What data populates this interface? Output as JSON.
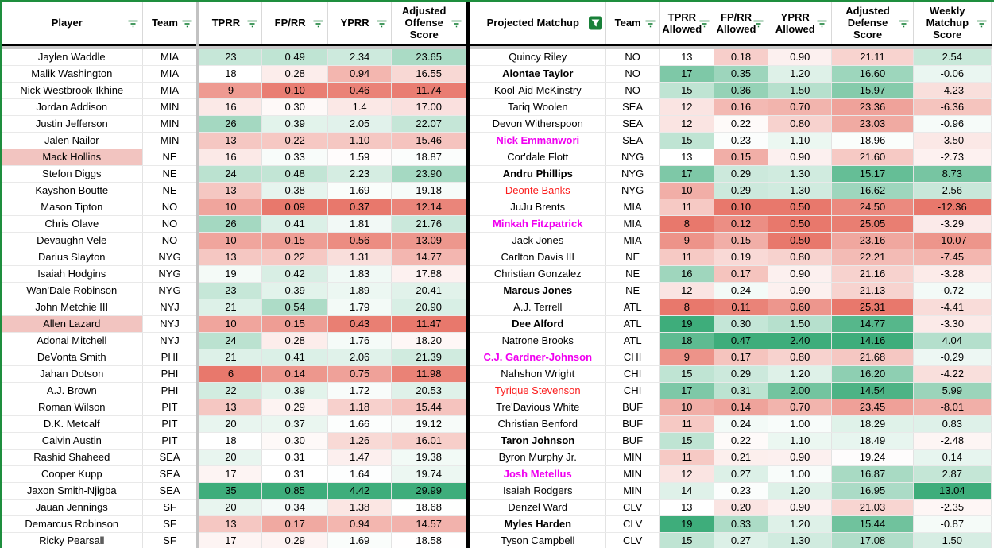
{
  "left_table": {
    "columns": [
      {
        "label": "Player",
        "filter": "outline"
      },
      {
        "label": "Team",
        "filter": "outline"
      },
      {
        "label": "TPRR",
        "filter": "outline"
      },
      {
        "label": "FP/RR",
        "filter": "outline"
      },
      {
        "label": "YPRR",
        "filter": "outline"
      },
      {
        "label": "Adjusted Offense Score",
        "filter": "outline"
      }
    ],
    "rows": [
      {
        "player": "Jaylen Waddle",
        "team": "MIA",
        "tprr": "23",
        "fp_rr": "0.49",
        "yprr": "2.34",
        "adj_off": "23.65",
        "highlighted": false
      },
      {
        "player": "Malik Washington",
        "team": "MIA",
        "tprr": "18",
        "fp_rr": "0.28",
        "yprr": "0.94",
        "adj_off": "16.55",
        "highlighted": false
      },
      {
        "player": "Nick Westbrook-Ikhine",
        "team": "MIA",
        "tprr": "9",
        "fp_rr": "0.10",
        "yprr": "0.46",
        "adj_off": "11.74",
        "highlighted": false
      },
      {
        "player": "Jordan Addison",
        "team": "MIN",
        "tprr": "16",
        "fp_rr": "0.30",
        "yprr": "1.4",
        "adj_off": "17.00",
        "highlighted": false
      },
      {
        "player": "Justin Jefferson",
        "team": "MIN",
        "tprr": "26",
        "fp_rr": "0.39",
        "yprr": "2.05",
        "adj_off": "22.07",
        "highlighted": false
      },
      {
        "player": "Jalen Nailor",
        "team": "MIN",
        "tprr": "13",
        "fp_rr": "0.22",
        "yprr": "1.10",
        "adj_off": "15.46",
        "highlighted": false
      },
      {
        "player": "Mack Hollins",
        "team": "NE",
        "tprr": "16",
        "fp_rr": "0.33",
        "yprr": "1.59",
        "adj_off": "18.87",
        "highlighted": true
      },
      {
        "player": "Stefon Diggs",
        "team": "NE",
        "tprr": "24",
        "fp_rr": "0.48",
        "yprr": "2.23",
        "adj_off": "23.90",
        "highlighted": false
      },
      {
        "player": "Kayshon Boutte",
        "team": "NE",
        "tprr": "13",
        "fp_rr": "0.38",
        "yprr": "1.69",
        "adj_off": "19.18",
        "highlighted": false
      },
      {
        "player": "Mason Tipton",
        "team": "NO",
        "tprr": "10",
        "fp_rr": "0.09",
        "yprr": "0.37",
        "adj_off": "12.14",
        "highlighted": false
      },
      {
        "player": "Chris Olave",
        "team": "NO",
        "tprr": "26",
        "fp_rr": "0.41",
        "yprr": "1.81",
        "adj_off": "21.76",
        "highlighted": false
      },
      {
        "player": "Devaughn Vele",
        "team": "NO",
        "tprr": "10",
        "fp_rr": "0.15",
        "yprr": "0.56",
        "adj_off": "13.09",
        "highlighted": false
      },
      {
        "player": "Darius Slayton",
        "team": "NYG",
        "tprr": "13",
        "fp_rr": "0.22",
        "yprr": "1.31",
        "adj_off": "14.77",
        "highlighted": false
      },
      {
        "player": "Isaiah Hodgins",
        "team": "NYG",
        "tprr": "19",
        "fp_rr": "0.42",
        "yprr": "1.83",
        "adj_off": "17.88",
        "highlighted": false
      },
      {
        "player": "Wan'Dale Robinson",
        "team": "NYG",
        "tprr": "23",
        "fp_rr": "0.39",
        "yprr": "1.89",
        "adj_off": "20.41",
        "highlighted": false
      },
      {
        "player": "John Metchie III",
        "team": "NYJ",
        "tprr": "21",
        "fp_rr": "0.54",
        "yprr": "1.79",
        "adj_off": "20.90",
        "highlighted": false
      },
      {
        "player": "Allen Lazard",
        "team": "NYJ",
        "tprr": "10",
        "fp_rr": "0.15",
        "yprr": "0.43",
        "adj_off": "11.47",
        "highlighted": true
      },
      {
        "player": "Adonai Mitchell",
        "team": "NYJ",
        "tprr": "24",
        "fp_rr": "0.28",
        "yprr": "1.76",
        "adj_off": "18.20",
        "highlighted": false
      },
      {
        "player": "DeVonta Smith",
        "team": "PHI",
        "tprr": "21",
        "fp_rr": "0.41",
        "yprr": "2.06",
        "adj_off": "21.39",
        "highlighted": false
      },
      {
        "player": "Jahan Dotson",
        "team": "PHI",
        "tprr": "6",
        "fp_rr": "0.14",
        "yprr": "0.75",
        "adj_off": "11.98",
        "highlighted": false
      },
      {
        "player": "A.J. Brown",
        "team": "PHI",
        "tprr": "22",
        "fp_rr": "0.39",
        "yprr": "1.72",
        "adj_off": "20.53",
        "highlighted": false
      },
      {
        "player": "Roman Wilson",
        "team": "PIT",
        "tprr": "13",
        "fp_rr": "0.29",
        "yprr": "1.18",
        "adj_off": "15.44",
        "highlighted": false
      },
      {
        "player": "D.K. Metcalf",
        "team": "PIT",
        "tprr": "20",
        "fp_rr": "0.37",
        "yprr": "1.66",
        "adj_off": "19.12",
        "highlighted": false
      },
      {
        "player": "Calvin Austin",
        "team": "PIT",
        "tprr": "18",
        "fp_rr": "0.30",
        "yprr": "1.26",
        "adj_off": "16.01",
        "highlighted": false
      },
      {
        "player": "Rashid Shaheed",
        "team": "SEA",
        "tprr": "20",
        "fp_rr": "0.31",
        "yprr": "1.47",
        "adj_off": "19.38",
        "highlighted": false
      },
      {
        "player": "Cooper Kupp",
        "team": "SEA",
        "tprr": "17",
        "fp_rr": "0.31",
        "yprr": "1.64",
        "adj_off": "19.74",
        "highlighted": false
      },
      {
        "player": "Jaxon Smith-Njigba",
        "team": "SEA",
        "tprr": "35",
        "fp_rr": "0.85",
        "yprr": "4.42",
        "adj_off": "29.99",
        "highlighted": false
      },
      {
        "player": "Jauan Jennings",
        "team": "SF",
        "tprr": "20",
        "fp_rr": "0.34",
        "yprr": "1.38",
        "adj_off": "18.68",
        "highlighted": false
      },
      {
        "player": "Demarcus Robinson",
        "team": "SF",
        "tprr": "13",
        "fp_rr": "0.17",
        "yprr": "0.94",
        "adj_off": "14.57",
        "highlighted": false
      },
      {
        "player": "Ricky Pearsall",
        "team": "SF",
        "tprr": "17",
        "fp_rr": "0.29",
        "yprr": "1.69",
        "adj_off": "18.58",
        "highlighted": false
      }
    ]
  },
  "right_table": {
    "columns": [
      {
        "label": "Projected Matchup",
        "filter": "active"
      },
      {
        "label": "Team",
        "filter": "outline"
      },
      {
        "label": "TPRR Allowed",
        "filter": "outline"
      },
      {
        "label": "FP/RR Allowed",
        "filter": "outline"
      },
      {
        "label": "YPRR Allowed",
        "filter": "outline"
      },
      {
        "label": "Adjusted Defense Score",
        "filter": "outline"
      },
      {
        "label": "Weekly Matchup Score",
        "filter": "outline"
      }
    ],
    "rows": [
      {
        "name": "Quincy Riley",
        "name_style": "normal",
        "team": "NO",
        "tprr_allowed": "13",
        "fp_rr_allowed": "0.18",
        "yprr_allowed": "0.90",
        "adj_def": "21.11",
        "weekly": "2.54"
      },
      {
        "name": "Alontae Taylor",
        "name_style": "bold",
        "team": "NO",
        "tprr_allowed": "17",
        "fp_rr_allowed": "0.35",
        "yprr_allowed": "1.20",
        "adj_def": "16.60",
        "weekly": "-0.06"
      },
      {
        "name": "Kool-Aid McKinstry",
        "name_style": "normal",
        "team": "NO",
        "tprr_allowed": "15",
        "fp_rr_allowed": "0.36",
        "yprr_allowed": "1.50",
        "adj_def": "15.97",
        "weekly": "-4.23"
      },
      {
        "name": "Tariq Woolen",
        "name_style": "normal",
        "team": "SEA",
        "tprr_allowed": "12",
        "fp_rr_allowed": "0.16",
        "yprr_allowed": "0.70",
        "adj_def": "23.36",
        "weekly": "-6.36"
      },
      {
        "name": "Devon Witherspoon",
        "name_style": "normal",
        "team": "SEA",
        "tprr_allowed": "12",
        "fp_rr_allowed": "0.22",
        "yprr_allowed": "0.80",
        "adj_def": "23.03",
        "weekly": "-0.96"
      },
      {
        "name": "Nick Emmanwori",
        "name_style": "magenta",
        "team": "SEA",
        "tprr_allowed": "15",
        "fp_rr_allowed": "0.23",
        "yprr_allowed": "1.10",
        "adj_def": "18.96",
        "weekly": "-3.50"
      },
      {
        "name": "Cor'dale Flott",
        "name_style": "normal",
        "team": "NYG",
        "tprr_allowed": "13",
        "fp_rr_allowed": "0.15",
        "yprr_allowed": "0.90",
        "adj_def": "21.60",
        "weekly": "-2.73"
      },
      {
        "name": "Andru Phillips",
        "name_style": "bold",
        "team": "NYG",
        "tprr_allowed": "17",
        "fp_rr_allowed": "0.29",
        "yprr_allowed": "1.30",
        "adj_def": "15.17",
        "weekly": "8.73"
      },
      {
        "name": "Deonte Banks",
        "name_style": "red",
        "team": "NYG",
        "tprr_allowed": "10",
        "fp_rr_allowed": "0.29",
        "yprr_allowed": "1.30",
        "adj_def": "16.62",
        "weekly": "2.56"
      },
      {
        "name": "JuJu Brents",
        "name_style": "normal",
        "team": "MIA",
        "tprr_allowed": "11",
        "fp_rr_allowed": "0.10",
        "yprr_allowed": "0.50",
        "adj_def": "24.50",
        "weekly": "-12.36"
      },
      {
        "name": "Minkah Fitzpatrick",
        "name_style": "magenta",
        "team": "MIA",
        "tprr_allowed": "8",
        "fp_rr_allowed": "0.12",
        "yprr_allowed": "0.50",
        "adj_def": "25.05",
        "weekly": "-3.29"
      },
      {
        "name": "Jack Jones",
        "name_style": "normal",
        "team": "MIA",
        "tprr_allowed": "9",
        "fp_rr_allowed": "0.15",
        "yprr_allowed": "0.50",
        "adj_def": "23.16",
        "weekly": "-10.07"
      },
      {
        "name": "Carlton Davis III",
        "name_style": "normal",
        "team": "NE",
        "tprr_allowed": "11",
        "fp_rr_allowed": "0.19",
        "yprr_allowed": "0.80",
        "adj_def": "22.21",
        "weekly": "-7.45"
      },
      {
        "name": "Christian Gonzalez",
        "name_style": "normal",
        "team": "NE",
        "tprr_allowed": "16",
        "fp_rr_allowed": "0.17",
        "yprr_allowed": "0.90",
        "adj_def": "21.16",
        "weekly": "-3.28"
      },
      {
        "name": "Marcus Jones",
        "name_style": "bold",
        "team": "NE",
        "tprr_allowed": "12",
        "fp_rr_allowed": "0.24",
        "yprr_allowed": "0.90",
        "adj_def": "21.13",
        "weekly": "-0.72"
      },
      {
        "name": "A.J. Terrell",
        "name_style": "normal",
        "team": "ATL",
        "tprr_allowed": "8",
        "fp_rr_allowed": "0.11",
        "yprr_allowed": "0.60",
        "adj_def": "25.31",
        "weekly": "-4.41"
      },
      {
        "name": "Dee Alford",
        "name_style": "bold",
        "team": "ATL",
        "tprr_allowed": "19",
        "fp_rr_allowed": "0.30",
        "yprr_allowed": "1.50",
        "adj_def": "14.77",
        "weekly": "-3.30"
      },
      {
        "name": "Natrone Brooks",
        "name_style": "normal",
        "team": "ATL",
        "tprr_allowed": "18",
        "fp_rr_allowed": "0.47",
        "yprr_allowed": "2.40",
        "adj_def": "14.16",
        "weekly": "4.04"
      },
      {
        "name": "C.J. Gardner-Johnson",
        "name_style": "magenta",
        "team": "CHI",
        "tprr_allowed": "9",
        "fp_rr_allowed": "0.17",
        "yprr_allowed": "0.80",
        "adj_def": "21.68",
        "weekly": "-0.29"
      },
      {
        "name": "Nahshon Wright",
        "name_style": "normal",
        "team": "CHI",
        "tprr_allowed": "15",
        "fp_rr_allowed": "0.29",
        "yprr_allowed": "1.20",
        "adj_def": "16.20",
        "weekly": "-4.22"
      },
      {
        "name": "Tyrique Stevenson",
        "name_style": "red",
        "team": "CHI",
        "tprr_allowed": "17",
        "fp_rr_allowed": "0.31",
        "yprr_allowed": "2.00",
        "adj_def": "14.54",
        "weekly": "5.99"
      },
      {
        "name": "Tre'Davious White",
        "name_style": "normal",
        "team": "BUF",
        "tprr_allowed": "10",
        "fp_rr_allowed": "0.14",
        "yprr_allowed": "0.70",
        "adj_def": "23.45",
        "weekly": "-8.01"
      },
      {
        "name": "Christian Benford",
        "name_style": "normal",
        "team": "BUF",
        "tprr_allowed": "11",
        "fp_rr_allowed": "0.24",
        "yprr_allowed": "1.00",
        "adj_def": "18.29",
        "weekly": "0.83"
      },
      {
        "name": "Taron Johnson",
        "name_style": "bold",
        "team": "BUF",
        "tprr_allowed": "15",
        "fp_rr_allowed": "0.22",
        "yprr_allowed": "1.10",
        "adj_def": "18.49",
        "weekly": "-2.48"
      },
      {
        "name": "Byron Murphy Jr.",
        "name_style": "normal",
        "team": "MIN",
        "tprr_allowed": "11",
        "fp_rr_allowed": "0.21",
        "yprr_allowed": "0.90",
        "adj_def": "19.24",
        "weekly": "0.14"
      },
      {
        "name": "Josh Metellus",
        "name_style": "magenta",
        "team": "MIN",
        "tprr_allowed": "12",
        "fp_rr_allowed": "0.27",
        "yprr_allowed": "1.00",
        "adj_def": "16.87",
        "weekly": "2.87"
      },
      {
        "name": "Isaiah Rodgers",
        "name_style": "normal",
        "team": "MIN",
        "tprr_allowed": "14",
        "fp_rr_allowed": "0.23",
        "yprr_allowed": "1.20",
        "adj_def": "16.95",
        "weekly": "13.04"
      },
      {
        "name": "Denzel Ward",
        "name_style": "normal",
        "team": "CLV",
        "tprr_allowed": "13",
        "fp_rr_allowed": "0.20",
        "yprr_allowed": "0.90",
        "adj_def": "21.03",
        "weekly": "-2.35"
      },
      {
        "name": "Myles Harden",
        "name_style": "bold",
        "team": "CLV",
        "tprr_allowed": "19",
        "fp_rr_allowed": "0.33",
        "yprr_allowed": "1.20",
        "adj_def": "15.44",
        "weekly": "-0.87"
      },
      {
        "name": "Tyson Campbell",
        "name_style": "normal",
        "team": "CLV",
        "tprr_allowed": "15",
        "fp_rr_allowed": "0.27",
        "yprr_allowed": "1.30",
        "adj_def": "17.08",
        "weekly": "1.50"
      }
    ]
  },
  "conditional_format": {
    "low_color": "#E8786C",
    "mid_color": "#FFFFFF",
    "high_color": "#3EAD7B",
    "midpoint": "median",
    "inverted_columns": [
      "adj_def"
    ],
    "name_highlight_color": "#F2C4C0",
    "magenta_name_color": "#F000F0",
    "red_name_color": "#FB1D1D"
  },
  "chrome": {
    "filter_range_border_color": "#1E8E3E",
    "filter_icon_color": "#188038",
    "active_filter_icon_color": "#188038"
  }
}
